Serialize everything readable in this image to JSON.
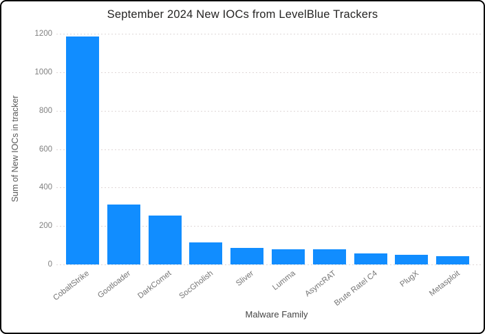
{
  "frame": {
    "background_color": "#ffffff",
    "border_color": "#000000"
  },
  "chart_data": {
    "type": "bar",
    "title": "September 2024 New IOCs from LevelBlue Trackers",
    "xlabel": "Malware Family",
    "ylabel": "Sum of New IOCs in tracker",
    "categories": [
      "CobaltStrike",
      "Gootloader",
      "DarkComet",
      "SocGholish",
      "Sliver",
      "Lumma",
      "AsyncRAT",
      "Brute Ratel C4",
      "PlugX",
      "Metasploit"
    ],
    "values": [
      1185,
      310,
      255,
      115,
      85,
      80,
      78,
      56,
      50,
      42
    ],
    "yticks": [
      0,
      200,
      400,
      600,
      800,
      1000,
      1200
    ],
    "ylim": [
      0,
      1200
    ],
    "bar_color": "#118DFF",
    "gridline_color": "#ded6d6",
    "grid": "horizontal-dotted",
    "legend_position": "none",
    "x_label_rotation_deg": -38
  }
}
